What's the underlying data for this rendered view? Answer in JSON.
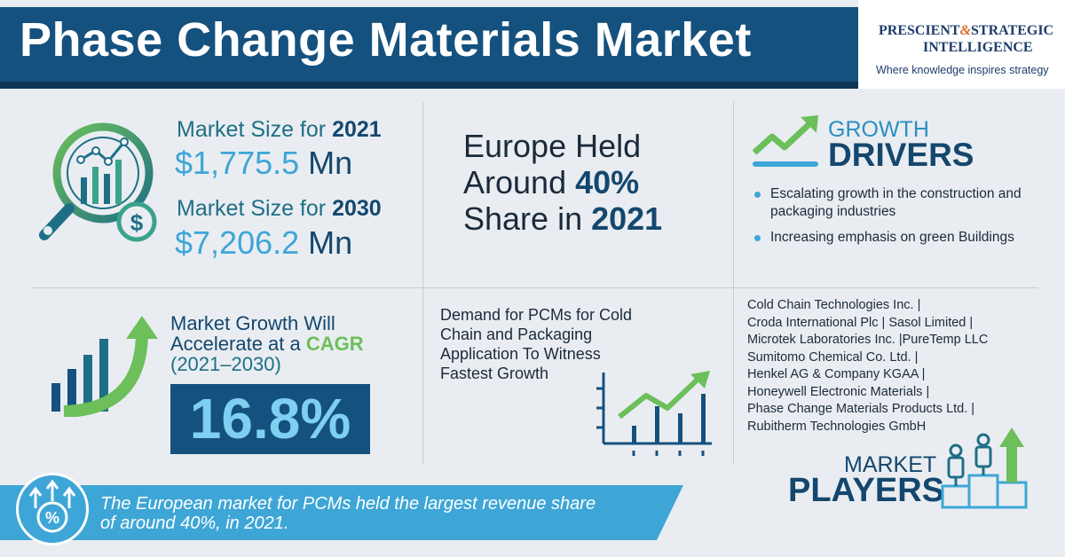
{
  "header": {
    "title": "Phase Change Materials Market",
    "logo_line1_a": "PRESCIENT",
    "logo_amp": "&",
    "logo_line1_b": "STRATEGIC",
    "logo_line2": "INTELLIGENCE",
    "logo_tagline": "Where knowledge inspires strategy"
  },
  "market_size": {
    "label_2021_prefix": "Market Size for",
    "year_2021": "2021",
    "value_2021": "$1,775.5",
    "unit_2021": "Mn",
    "label_2030_prefix": "Market Size for",
    "year_2030": "2030",
    "value_2030": "$7,206.2",
    "unit_2030": "Mn"
  },
  "europe": {
    "line1": "Europe Held",
    "line2_prefix": "Around",
    "line2_value": "40%",
    "line3_prefix": "Share in",
    "line3_year": "2021"
  },
  "growth_drivers": {
    "heading_small": "GROWTH",
    "heading_big": "DRIVERS",
    "items": [
      "Escalating growth in the construction and packaging industries",
      "Increasing emphasis on green Buildings"
    ]
  },
  "cagr": {
    "line1": "Market Growth Will",
    "line2_prefix": "Accelerate at a",
    "line2_highlight": "CAGR",
    "years": "(2021–2030)",
    "value": "16.8%"
  },
  "demand": {
    "text": "Demand for PCMs for Cold Chain and Packaging Application To Witness Fastest Growth"
  },
  "market_players": {
    "lines": [
      "Cold Chain Technologies Inc. |",
      "Croda International Plc | Sasol Limited |",
      "Microtek Laboratories Inc. |PureTemp LLC",
      "Sumitomo Chemical Co. Ltd. |",
      "Henkel AG & Company KGAA |",
      "Honeywell Electronic Materials |",
      "Phase Change Materials Products Ltd. |",
      "Rubitherm Technologies GmbH"
    ],
    "heading_small": "MARKET",
    "heading_big": "PLAYERS"
  },
  "footer": {
    "line1": "The European market for PCMs held the largest revenue share",
    "line2": "of around 40%, in 2021."
  },
  "colors": {
    "navy": "#15517e",
    "accent_blue": "#3ea6d6",
    "teal": "#1e6f86",
    "green": "#6cbf5a",
    "orange": "#d9692b"
  },
  "icons": [
    "magnifier-chart-icon",
    "trend-up-icon",
    "bar-growth-arrow-icon",
    "line-chart-icon",
    "podium-people-icon",
    "percent-arrows-icon"
  ]
}
